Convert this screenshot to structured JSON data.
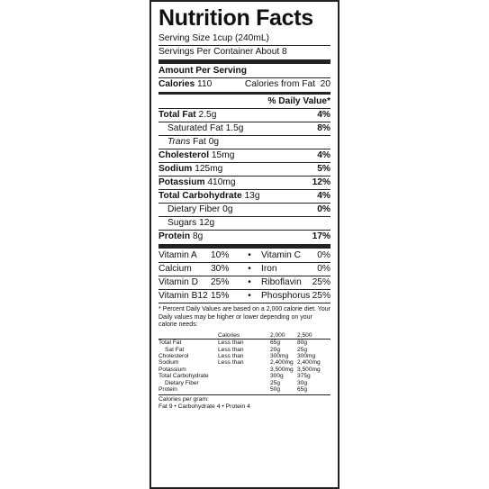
{
  "title": "Nutrition Facts",
  "serving_size": "Serving Size 1cup (240mL)",
  "servings_per_container": "Servings Per Container About 8",
  "amount_per_serving": "Amount Per Serving",
  "calories": {
    "label": "Calories",
    "value": "110",
    "fat_label": "Calories from Fat",
    "fat_value": "20"
  },
  "dv_header": "% Daily Value*",
  "nutrients": [
    {
      "label": "Total Fat",
      "amount": "2.5g",
      "dv": "4%"
    },
    {
      "label": "Saturated Fat",
      "amount": "1.5g",
      "dv": "8%"
    },
    {
      "label": "Trans",
      "label_suffix": "Fat",
      "amount": "0g",
      "dv": ""
    },
    {
      "label": "Cholesterol",
      "amount": "15mg",
      "dv": "4%"
    },
    {
      "label": "Sodium",
      "amount": "125mg",
      "dv": "5%"
    },
    {
      "label": "Potassium",
      "amount": "410mg",
      "dv": "12%"
    },
    {
      "label": "Total Carbohydrate",
      "amount": "13g",
      "dv": "4%"
    },
    {
      "label": "Dietary Fiber",
      "amount": "0g",
      "dv": "0%"
    },
    {
      "label": "Sugars",
      "amount": "12g",
      "dv": ""
    },
    {
      "label": "Protein",
      "amount": "8g",
      "dv": "17%"
    }
  ],
  "vitamins": [
    {
      "n1": "Vitamin A",
      "v1": "10%",
      "n2": "Vitamin C",
      "v2": "0%"
    },
    {
      "n1": "Calcium",
      "v1": "30%",
      "n2": "Iron",
      "v2": "0%"
    },
    {
      "n1": "Vitamin D",
      "v1": "25%",
      "n2": "Riboflavin",
      "v2": "25%"
    },
    {
      "n1": "Vitamin B12",
      "v1": "15%",
      "n2": "Phosphorus",
      "v2": "25%"
    }
  ],
  "bullet": "•",
  "footnote": "* Percent Daily Values are based on a 2,000 calorie diet. Your Daily values may be higher or lower depending on your calorie needs:",
  "dv_table": {
    "header": [
      "",
      "Calories",
      "2,000",
      "2,500"
    ],
    "rows": [
      [
        "Total Fat",
        "Less than",
        "65g",
        "80g"
      ],
      [
        "Sat Fat",
        "Less than",
        "20g",
        "25g"
      ],
      [
        "Cholesterol",
        "Less than",
        "300mg",
        "300mg"
      ],
      [
        "Sodium",
        "Less than",
        "2,400mg",
        "2,400mg"
      ],
      [
        "Potassium",
        "",
        "3,500mg",
        "3,500mg"
      ],
      [
        "Total Carbohydrate",
        "",
        "300g",
        "375g"
      ],
      [
        "Dietary Fiber",
        "",
        "25g",
        "30g"
      ],
      [
        "Protein",
        "",
        "50g",
        "65g"
      ]
    ]
  },
  "calories_per_gram": "Calories per gram:",
  "calories_per_gram_values": "Fat 9  •  Carbohydrate 4  •  Protein 4"
}
